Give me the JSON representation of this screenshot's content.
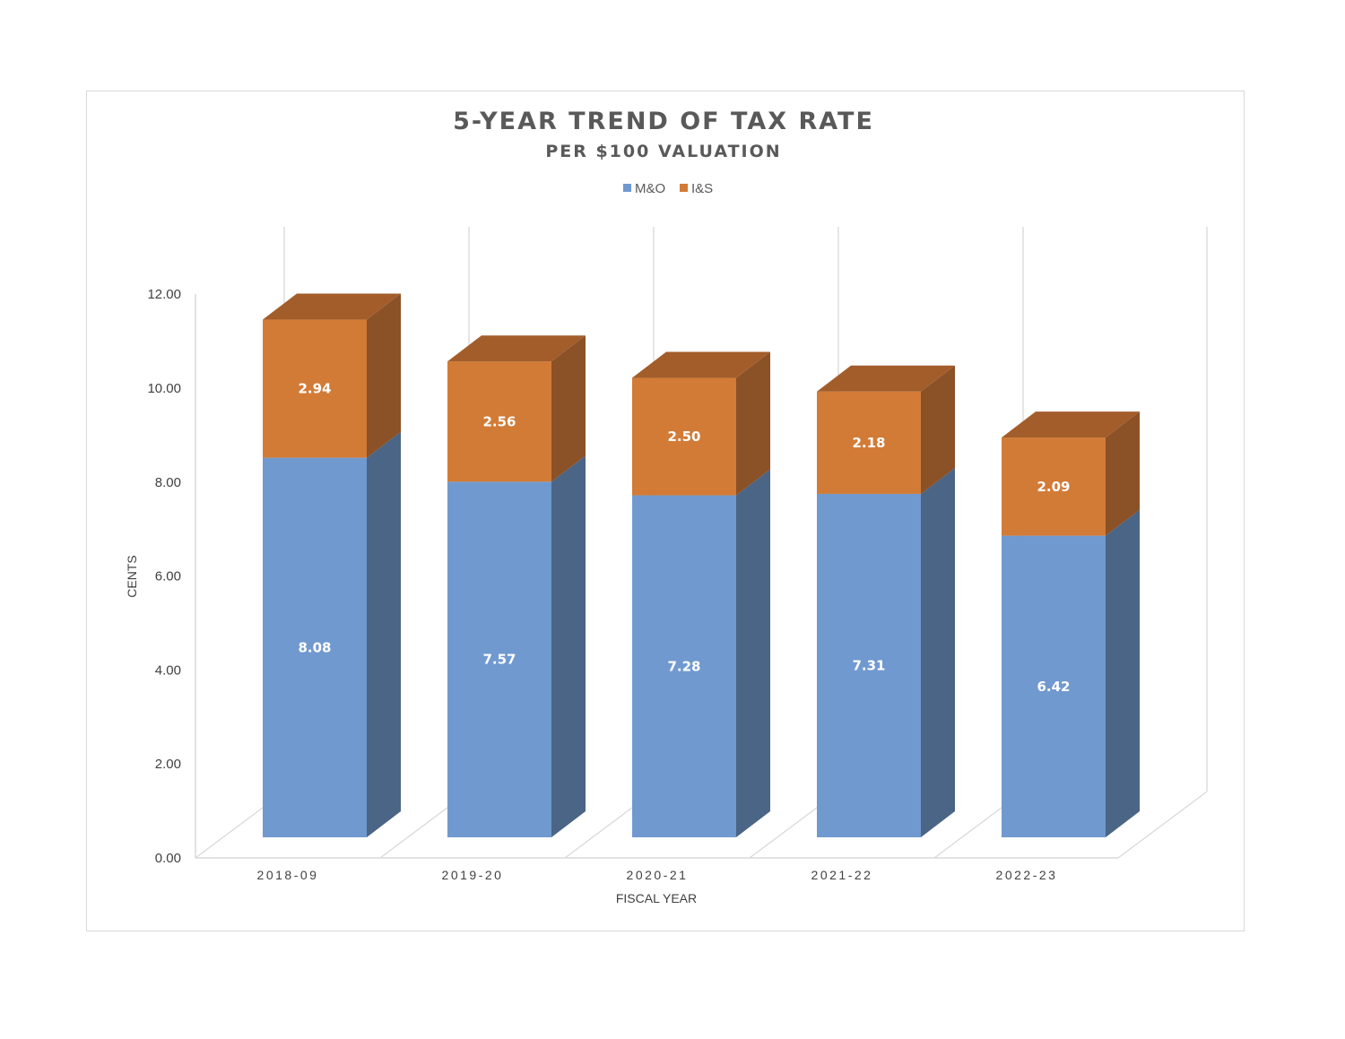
{
  "chart_data": {
    "type": "bar",
    "stacked": true,
    "style": "3d-column",
    "title": "5-YEAR TREND OF TAX RATE",
    "subtitle": "PER $100 VALUATION",
    "xlabel": "FISCAL YEAR",
    "ylabel": "CENTS",
    "ylim": [
      0,
      12
    ],
    "yticks": [
      "0.00",
      "2.00",
      "4.00",
      "6.00",
      "8.00",
      "10.00",
      "12.00"
    ],
    "grid": true,
    "legend": "top",
    "categories": [
      "2018-09",
      "2019-20",
      "2020-21",
      "2021-22",
      "2022-23"
    ],
    "series": [
      {
        "name": "M&O",
        "values": [
          8.08,
          7.57,
          7.28,
          7.31,
          6.42
        ],
        "labels": [
          "8.08",
          "7.57",
          "7.28",
          "7.31",
          "6.42"
        ],
        "color": "#7099cf",
        "side_color": "#4a6585",
        "top_color": "#5d83b5"
      },
      {
        "name": "I&S",
        "values": [
          2.94,
          2.56,
          2.5,
          2.18,
          2.09
        ],
        "labels": [
          "2.94",
          "2.56",
          "2.50",
          "2.18",
          "2.09"
        ],
        "color": "#d27b37",
        "side_color": "#8b5127",
        "top_color": "#a35d2b"
      }
    ]
  }
}
